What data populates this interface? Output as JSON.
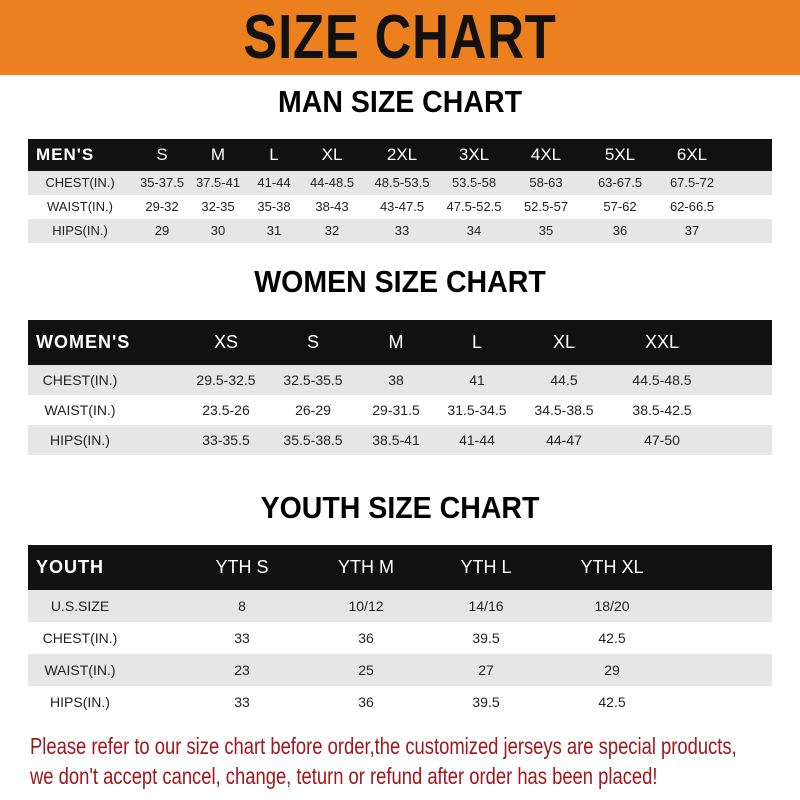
{
  "banner": {
    "title": "SIZE CHART",
    "color": "#ec801f"
  },
  "men": {
    "title": "MAN SIZE CHART",
    "headers": [
      "MEN'S",
      "S",
      "M",
      "L",
      "XL",
      "2XL",
      "3XL",
      "4XL",
      "5XL",
      "6XL"
    ],
    "rows": [
      [
        "CHEST(IN.)",
        "35-37.5",
        "37.5-41",
        "41-44",
        "44-48.5",
        "48.5-53.5",
        "53.5-58",
        "58-63",
        "63-67.5",
        "67.5-72"
      ],
      [
        "WAIST(IN.)",
        "29-32",
        "32-35",
        "35-38",
        "38-43",
        "43-47.5",
        "47.5-52.5",
        "52.5-57",
        "57-62",
        "62-66.5"
      ],
      [
        "HIPS(IN.)",
        "29",
        "30",
        "31",
        "32",
        "33",
        "34",
        "35",
        "36",
        "37"
      ]
    ]
  },
  "women": {
    "title": "WOMEN SIZE CHART",
    "headers": [
      "WOMEN'S",
      "XS",
      "S",
      "M",
      "L",
      "XL",
      "XXL"
    ],
    "rows": [
      [
        "CHEST(IN.)",
        "29.5-32.5",
        "32.5-35.5",
        "38",
        "41",
        "44.5",
        "44.5-48.5"
      ],
      [
        "WAIST(IN.)",
        "23.5-26",
        "26-29",
        "29-31.5",
        "31.5-34.5",
        "34.5-38.5",
        "38.5-42.5"
      ],
      [
        "HIPS(IN.)",
        "33-35.5",
        "35.5-38.5",
        "38.5-41",
        "41-44",
        "44-47",
        "47-50"
      ]
    ]
  },
  "youth": {
    "title": "YOUTH SIZE CHART",
    "headers": [
      "YOUTH",
      "YTH S",
      "YTH M",
      "YTH L",
      "YTH XL"
    ],
    "rows": [
      [
        "U.S.SIZE",
        "8",
        "10/12",
        "14/16",
        "18/20"
      ],
      [
        "CHEST(IN.)",
        "33",
        "36",
        "39.5",
        "42.5"
      ],
      [
        "WAIST(IN.)",
        "23",
        "25",
        "27",
        "29"
      ],
      [
        "HIPS(IN.)",
        "33",
        "36",
        "39.5",
        "42.5"
      ]
    ]
  },
  "footer": {
    "line1": "Please refer to our size chart before order,the customized jerseys are special products,",
    "line2": "we don't accept cancel, change, teturn or refund after order has been placed!",
    "color": "#a0171c"
  }
}
